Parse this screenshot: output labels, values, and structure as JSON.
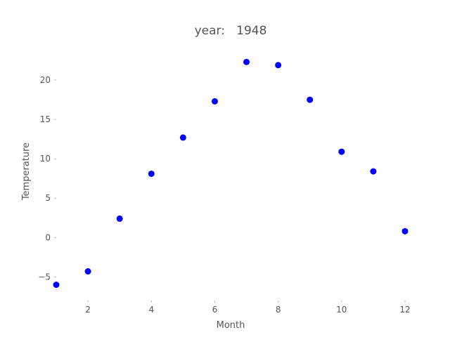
{
  "chart_data": {
    "type": "scatter",
    "title": "year:   1948",
    "xlabel": "Month",
    "ylabel": "Temperature",
    "x": [
      1,
      2,
      3,
      4,
      5,
      6,
      7,
      8,
      9,
      10,
      11,
      12
    ],
    "y": [
      -6.0,
      -4.3,
      2.4,
      8.1,
      12.7,
      17.3,
      22.3,
      21.9,
      17.5,
      10.9,
      8.4,
      0.8
    ],
    "xlim": [
      1,
      12
    ],
    "ylim": [
      -8,
      25
    ],
    "xticks": [
      2,
      4,
      6,
      8,
      10,
      12
    ],
    "yticks": [
      -5,
      0,
      5,
      10,
      15,
      20
    ],
    "xtick_labels": [
      "2",
      "4",
      "6",
      "8",
      "10",
      "12"
    ],
    "ytick_labels": [
      "−5",
      "0",
      "5",
      "10",
      "15",
      "20"
    ],
    "marker_color": "#0000ff",
    "grid": false,
    "legend": false
  }
}
